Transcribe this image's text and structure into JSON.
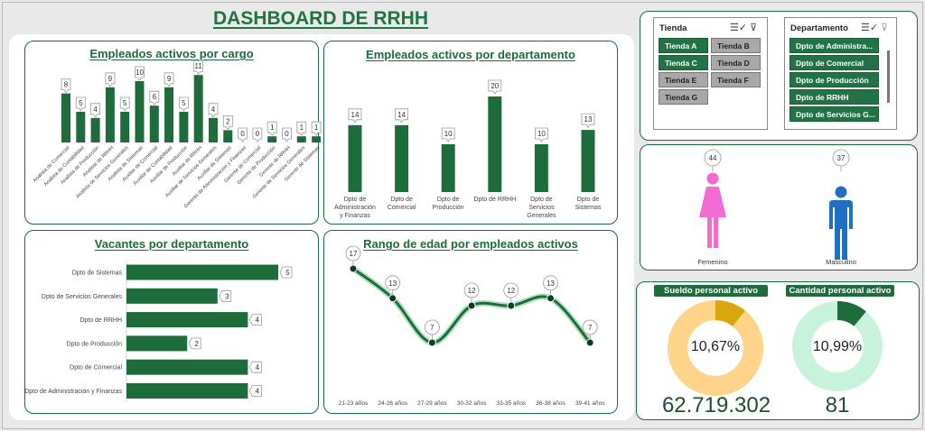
{
  "dashboard": {
    "title": "DASHBOARD DE RRHH"
  },
  "colors": {
    "green": "#1e6b3c",
    "accent": "#217346",
    "female": "#f26bd0",
    "male": "#1f6fc2",
    "salary_fill": "#d9a70b",
    "salary_ring": "#fdd48a",
    "count_fill": "#1e6b3c",
    "count_ring": "#c7f3dc"
  },
  "charts": {
    "cargo": {
      "title": "Empleados activos por cargo",
      "chart_data": {
        "type": "bar",
        "categories": [
          "Analista de Comercial",
          "Analista de Contabilidad",
          "Analista de Producción",
          "Analista de RRHH",
          "Analista de Servicios Generales",
          "Analista de Sistemas",
          "Auxiliar de Comercial",
          "Auxiliar de Contabilidad",
          "Auxiliar de Producción",
          "Auxiliar de RRHH",
          "Auxiliar de Servicios Generales",
          "Auxiliar de Sistemas",
          "Gerente de Administración y Finanzas",
          "Gerente de Comercial",
          "Gerente de Producción",
          "Gerente de RRHH",
          "Gerente de Servicios Generales",
          "Gerente de Sistemas"
        ],
        "values": [
          8,
          5,
          4,
          9,
          5,
          10,
          6,
          9,
          5,
          11,
          4,
          2,
          0,
          0,
          1,
          0,
          1,
          1
        ]
      }
    },
    "departamento": {
      "title": "Empleados activos por departamento",
      "chart_data": {
        "type": "bar",
        "categories": [
          "Dpto de Administración y Finanzas",
          "Dpto de Comercial",
          "Dpto de Producción",
          "Dpto de RRHH",
          "Dpto de Servicios Generales",
          "Dpto de Sistemas"
        ],
        "values": [
          14,
          14,
          10,
          20,
          10,
          13
        ]
      }
    },
    "vacantes": {
      "title": "Vacantes por departamento",
      "chart_data": {
        "type": "bar",
        "orientation": "horizontal",
        "categories": [
          "Dpto de Sistemas",
          "Dpto de Servicios Generales",
          "Dpto de RRHH",
          "Dpto de Producción",
          "Dpto de Comercial",
          "Dpto de Administración y Finanzas"
        ],
        "values": [
          5,
          3,
          4,
          2,
          4,
          4
        ]
      }
    },
    "edad": {
      "title": "Rango de edad por empleados activos",
      "chart_data": {
        "type": "line",
        "categories": [
          "21-23 años",
          "24-26 años",
          "27-29 años",
          "30-32 años",
          "33-35 años",
          "36-38 años",
          "39-41 años"
        ],
        "values": [
          17,
          13,
          7,
          12,
          12,
          13,
          7
        ]
      }
    },
    "genero": {
      "chart_data": {
        "type": "bar",
        "categories": [
          "Femenino",
          "Masculino"
        ],
        "values": [
          44,
          37
        ]
      }
    }
  },
  "slicers": {
    "tienda": {
      "label": "Tienda",
      "items": [
        {
          "label": "Tienda A",
          "selected": true
        },
        {
          "label": "Tienda B",
          "selected": false
        },
        {
          "label": "Tienda C",
          "selected": true
        },
        {
          "label": "Tienda D",
          "selected": false
        },
        {
          "label": "Tienda E",
          "selected": false
        },
        {
          "label": "Tienda F",
          "selected": false
        },
        {
          "label": "Tienda G",
          "selected": false
        }
      ]
    },
    "departamento": {
      "label": "Departamento",
      "items": [
        {
          "label": "Dpto de Administra...",
          "selected": true
        },
        {
          "label": "Dpto de Comercial",
          "selected": true
        },
        {
          "label": "Dpto de Producción",
          "selected": true
        },
        {
          "label": "Dpto de RRHH",
          "selected": true
        },
        {
          "label": "Dpto de Servicios G...",
          "selected": true
        }
      ]
    }
  },
  "kpis": {
    "sueldo": {
      "title": "Sueldo personal activo",
      "pct_label": "10,67%",
      "pct": 0.1067,
      "value": "62.719.302"
    },
    "cantidad": {
      "title": "Cantidad personal activo",
      "pct_label": "10,99%",
      "pct": 0.1099,
      "value": "81"
    }
  }
}
